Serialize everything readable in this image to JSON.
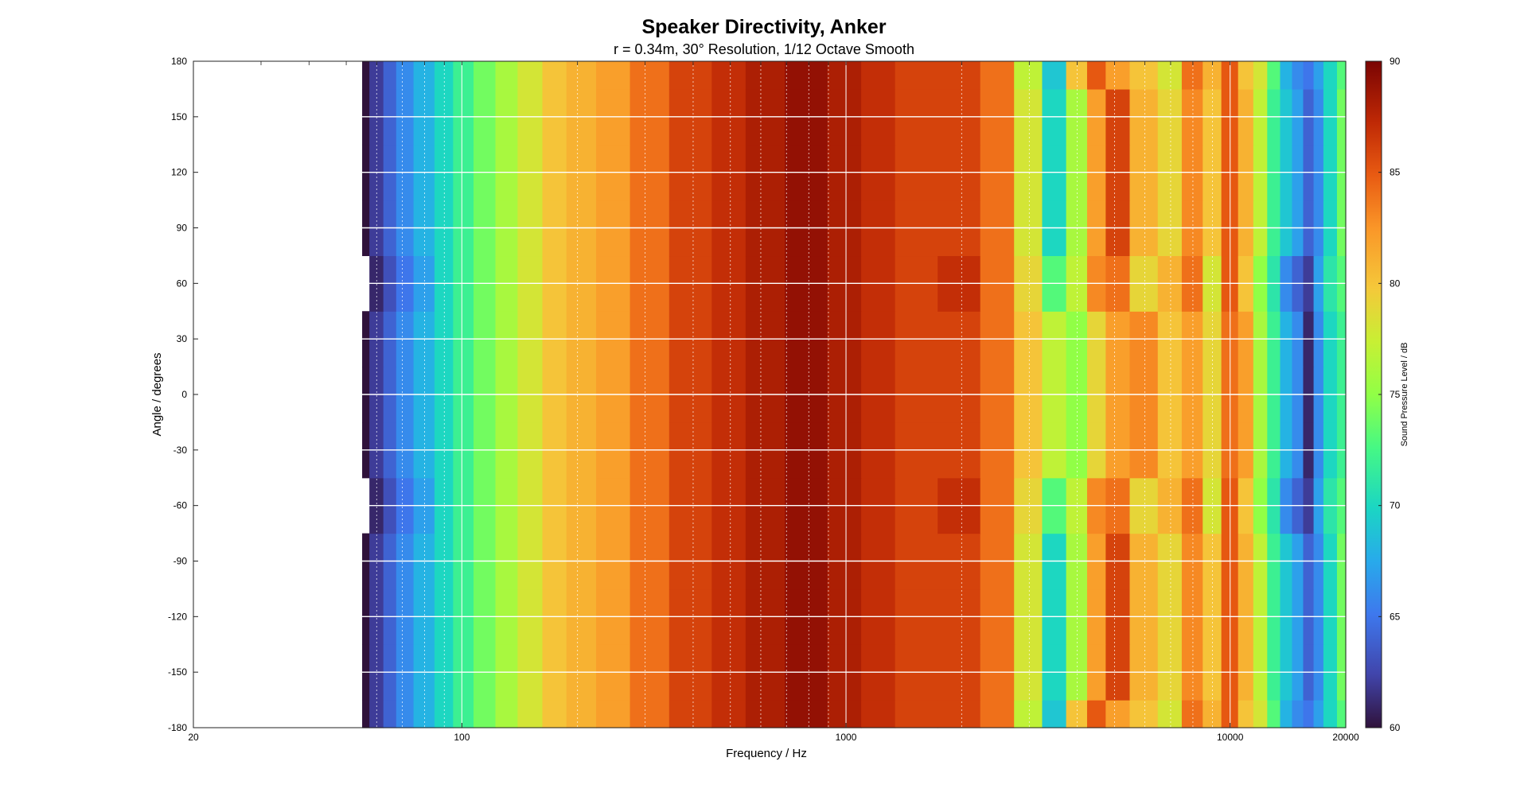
{
  "chart_data": {
    "type": "heatmap",
    "title": "Speaker Directivity, Anker",
    "subtitle": "r = 0.34m, 30° Resolution, 1/12 Octave Smooth",
    "xlabel": "Frequency / Hz",
    "ylabel": "Angle / degrees",
    "x_scale": "log",
    "xlim": [
      20,
      20000
    ],
    "ylim": [
      -180,
      180
    ],
    "x_tick_labels": [
      "20",
      "100",
      "1000",
      "10000",
      "20000"
    ],
    "y_tick_labels": [
      "180",
      "150",
      "120",
      "90",
      "60",
      "30",
      "0",
      "-30",
      "-60",
      "-90",
      "-120",
      "-150",
      "-180"
    ],
    "grid": true,
    "colorbar": {
      "label": "Sound Pressure Level / dB",
      "range": [
        60,
        90
      ],
      "tick_labels": [
        "90",
        "85",
        "80",
        "75",
        "70",
        "65",
        "60"
      ]
    },
    "angles": [
      -180,
      -150,
      -120,
      -90,
      -60,
      -30,
      0,
      30,
      60,
      90,
      120,
      150,
      180
    ],
    "frequencies": [
      55,
      60,
      65,
      70,
      80,
      90,
      100,
      115,
      130,
      150,
      175,
      200,
      250,
      300,
      400,
      500,
      600,
      800,
      1000,
      1200,
      1500,
      2000,
      2500,
      3000,
      3500,
      4000,
      4500,
      5000,
      6000,
      7000,
      8000,
      9000,
      10000,
      11000,
      12000,
      13000,
      14000,
      15000,
      16000,
      17000,
      18000,
      20000
    ],
    "spl_on_axis": [
      60,
      62,
      64,
      66,
      68,
      70,
      72,
      74,
      76,
      78,
      80,
      81,
      82,
      84,
      86,
      87,
      88,
      89,
      88,
      87,
      86,
      86,
      84,
      80,
      77,
      75,
      79,
      82,
      83,
      80,
      82,
      79,
      84,
      82,
      76,
      72,
      68,
      66,
      61,
      66,
      70,
      72
    ],
    "spl_at_60deg": [
      null,
      61,
      63,
      65,
      67,
      70,
      72,
      74,
      76,
      78,
      80,
      81,
      82,
      84,
      86,
      87,
      88,
      89,
      88,
      87,
      86,
      87,
      84,
      79,
      73,
      77,
      83,
      84,
      79,
      81,
      84,
      78,
      85,
      80,
      75,
      71,
      66,
      64,
      62,
      67,
      71,
      73
    ],
    "spl_at_120deg": [
      60,
      62,
      64,
      66,
      68,
      70,
      72,
      74,
      76,
      78,
      80,
      81,
      82,
      84,
      86,
      87,
      88,
      89,
      88,
      87,
      86,
      86,
      84,
      78,
      70,
      76,
      82,
      86,
      81,
      79,
      83,
      80,
      85,
      81,
      77,
      72,
      69,
      67,
      64,
      66,
      70,
      74
    ],
    "spl_at_180deg": [
      60,
      62,
      64,
      66,
      68,
      70,
      72,
      74,
      76,
      78,
      80,
      81,
      82,
      84,
      86,
      87,
      88,
      89,
      88,
      87,
      86,
      86,
      84,
      77,
      69,
      80,
      85,
      82,
      80,
      78,
      84,
      81,
      85,
      80,
      78,
      73,
      68,
      66,
      65,
      67,
      70,
      73
    ]
  }
}
